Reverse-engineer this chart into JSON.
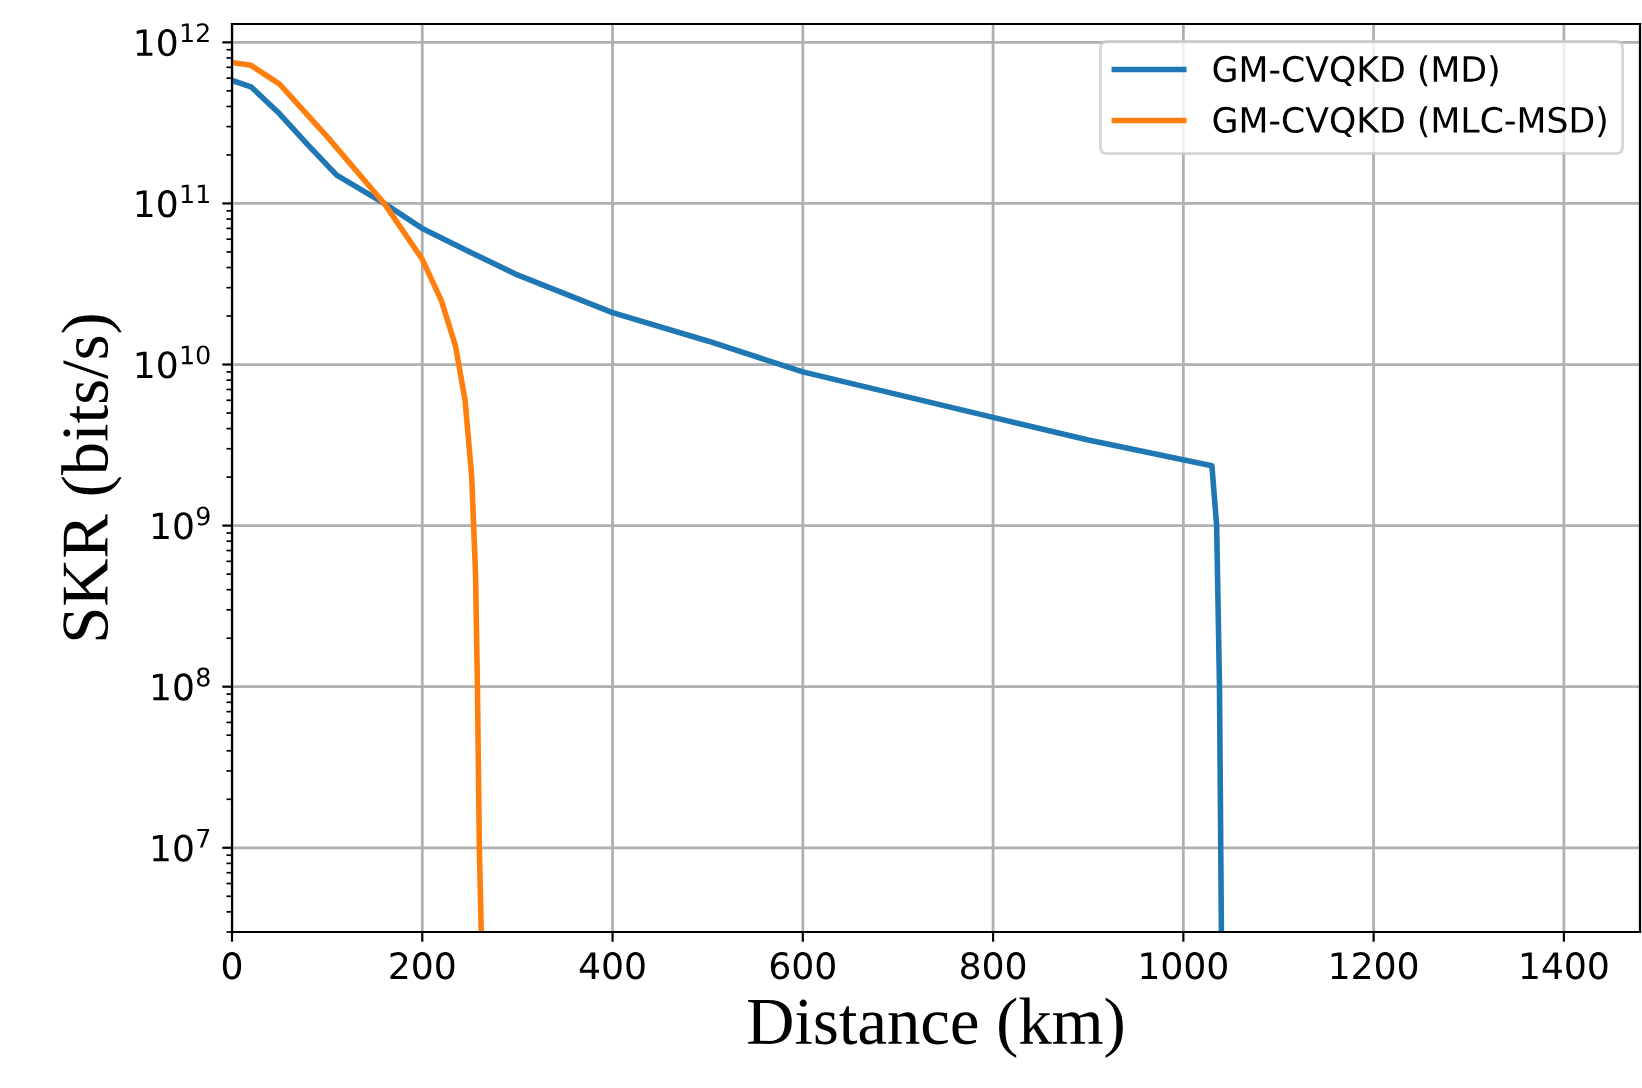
{
  "chart_data": {
    "type": "line",
    "xlabel": "Distance (km)",
    "ylabel": "SKR (bits/s)",
    "log": "y",
    "grid": true,
    "legend": "top right",
    "line_style": "solid",
    "marker": "none",
    "xlim": [
      0,
      1480
    ],
    "xticks": [
      0,
      200,
      400,
      600,
      800,
      1000,
      1200,
      1400
    ],
    "ylim": [
      3000000,
      1300000000000
    ],
    "yticks": [
      {
        "value": 10000000,
        "label": "10$^{7}$"
      },
      {
        "value": 100000000,
        "label": "10$^{8}$"
      },
      {
        "value": 1000000000,
        "label": "10$^{9}$"
      },
      {
        "value": 10000000000,
        "label": "10$^{10}$"
      },
      {
        "value": 100000000000,
        "label": "10$^{11}$"
      },
      {
        "value": 1000000000000,
        "label": "10$^{12}$"
      }
    ],
    "series": [
      {
        "name": "GM-CVQKD (MD)",
        "color": "#1f77b4",
        "x": [
          0,
          20,
          50,
          80,
          110,
          160,
          200,
          250,
          300,
          400,
          500,
          600,
          700,
          800,
          900,
          1030,
          1035,
          1038,
          1040
        ],
        "values": [
          580000000000,
          530000000000,
          360000000000,
          230000000000,
          150000000000,
          100000000000,
          70000000000,
          50000000000,
          36000000000,
          21000000000,
          14000000000,
          9000000000,
          6500000000,
          4700000000,
          3400000000,
          2350000000,
          1000000000,
          100000000,
          3000000
        ]
      },
      {
        "name": "GM-CVQKD (MLC-MSD)",
        "color": "#ff7f0e",
        "x": [
          0,
          20,
          50,
          100,
          160,
          200,
          220,
          235,
          245,
          252,
          256,
          258,
          260,
          262
        ],
        "values": [
          750000000000,
          720000000000,
          550000000000,
          260000000000,
          100000000000,
          45000000000,
          25000000000,
          13000000000,
          6000000000,
          2000000000,
          500000000,
          100000000,
          10000000,
          3000000
        ]
      }
    ]
  }
}
